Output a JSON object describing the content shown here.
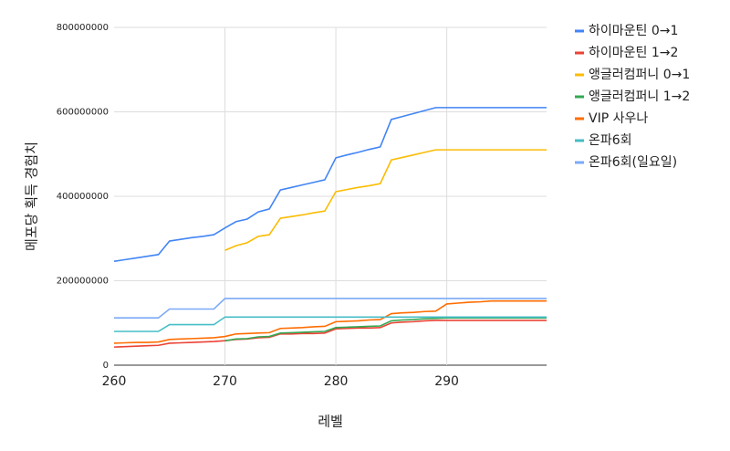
{
  "chart_data": {
    "type": "line",
    "x": [
      260,
      261,
      262,
      263,
      264,
      265,
      266,
      267,
      268,
      269,
      270,
      271,
      272,
      273,
      274,
      275,
      276,
      277,
      278,
      279,
      280,
      281,
      282,
      283,
      284,
      285,
      286,
      287,
      288,
      289,
      290,
      291,
      292,
      293,
      294,
      295,
      296,
      297,
      298,
      299
    ],
    "series": [
      {
        "name": "하이마운틴 0→1",
        "color": "#4285f4",
        "values": [
          246000000,
          250000000,
          254000000,
          258000000,
          262000000,
          294000000,
          298000000,
          302000000,
          305000000,
          309000000,
          325000000,
          340000000,
          346000000,
          363000000,
          370000000,
          415000000,
          421000000,
          427000000,
          433000000,
          439000000,
          491000000,
          498000000,
          504000000,
          511000000,
          517000000,
          582000000,
          589000000,
          596000000,
          603000000,
          610000000,
          610000000,
          610000000,
          610000000,
          610000000,
          610000000,
          610000000,
          610000000,
          610000000,
          610000000,
          610000000
        ]
      },
      {
        "name": "하이마운틴 1→2",
        "color": "#ea4335",
        "values": [
          43000000,
          44000000,
          45000000,
          46000000,
          47000000,
          52000000,
          53000000,
          54000000,
          55000000,
          56000000,
          58000000,
          61000000,
          62000000,
          65000000,
          66000000,
          74000000,
          74000000,
          75000000,
          75000000,
          76000000,
          86000000,
          87000000,
          88000000,
          88000000,
          89000000,
          100000000,
          102000000,
          103000000,
          105000000,
          106000000,
          106000000,
          106000000,
          106000000,
          106000000,
          106000000,
          106000000,
          106000000,
          106000000,
          106000000,
          106000000
        ]
      },
      {
        "name": "앵글러컴퍼니 0→1",
        "color": "#fbbc04",
        "values": [
          null,
          null,
          null,
          null,
          null,
          null,
          null,
          null,
          null,
          null,
          272000000,
          283000000,
          290000000,
          305000000,
          309000000,
          348000000,
          352000000,
          356000000,
          361000000,
          365000000,
          411000000,
          416000000,
          421000000,
          425000000,
          430000000,
          486000000,
          492000000,
          498000000,
          504000000,
          510000000,
          510000000,
          510000000,
          510000000,
          510000000,
          510000000,
          510000000,
          510000000,
          510000000,
          510000000,
          510000000
        ]
      },
      {
        "name": "앵글러컴퍼니 1→2",
        "color": "#34a853",
        "values": [
          null,
          null,
          null,
          null,
          null,
          null,
          null,
          null,
          null,
          null,
          58000000,
          62000000,
          63000000,
          67000000,
          68000000,
          76000000,
          77000000,
          78000000,
          79000000,
          80000000,
          89000000,
          90000000,
          91000000,
          92000000,
          93000000,
          105000000,
          107000000,
          108000000,
          110000000,
          111000000,
          112000000,
          112000000,
          112000000,
          112000000,
          112000000,
          112000000,
          112000000,
          112000000,
          112000000,
          112000000
        ]
      },
      {
        "name": "VIP 사우나",
        "color": "#ff6d01",
        "values": [
          52000000,
          53000000,
          54000000,
          54000000,
          55000000,
          61000000,
          62000000,
          63000000,
          64000000,
          65000000,
          68000000,
          74000000,
          75000000,
          76000000,
          77000000,
          87000000,
          88000000,
          89000000,
          91000000,
          92000000,
          103000000,
          104000000,
          105000000,
          107000000,
          108000000,
          122000000,
          124000000,
          125000000,
          127000000,
          128000000,
          145000000,
          147000000,
          149000000,
          150000000,
          152000000,
          152000000,
          152000000,
          152000000,
          152000000,
          152000000
        ]
      },
      {
        "name": "온파6회",
        "color": "#46bdc6",
        "values": [
          80000000,
          80000000,
          80000000,
          80000000,
          80000000,
          96000000,
          96000000,
          96000000,
          96000000,
          96000000,
          114000000,
          114000000,
          114000000,
          114000000,
          114000000,
          114000000,
          114000000,
          114000000,
          114000000,
          114000000,
          114000000,
          114000000,
          114000000,
          114000000,
          114000000,
          114000000,
          114000000,
          114000000,
          114000000,
          114000000,
          114000000,
          114000000,
          114000000,
          114000000,
          114000000,
          114000000,
          114000000,
          114000000,
          114000000,
          114000000
        ]
      },
      {
        "name": "온파6회(일요일)",
        "color": "#7baaf7",
        "values": [
          112000000,
          112000000,
          112000000,
          112000000,
          112000000,
          133000000,
          133000000,
          133000000,
          133000000,
          133000000,
          158000000,
          158000000,
          158000000,
          158000000,
          158000000,
          158000000,
          158000000,
          158000000,
          158000000,
          158000000,
          158000000,
          158000000,
          158000000,
          158000000,
          158000000,
          158000000,
          158000000,
          158000000,
          158000000,
          158000000,
          158000000,
          158000000,
          158000000,
          158000000,
          158000000,
          158000000,
          158000000,
          158000000,
          158000000,
          158000000
        ]
      }
    ],
    "xlabel": "레벨",
    "ylabel": "메포당 획득 경험치",
    "xlim": [
      260,
      299
    ],
    "xticks": [
      260,
      270,
      280,
      290
    ],
    "ylim": [
      0,
      800000000
    ],
    "yticks": [
      0,
      200000000,
      400000000,
      600000000,
      800000000
    ],
    "grid": true,
    "legend": "right"
  }
}
